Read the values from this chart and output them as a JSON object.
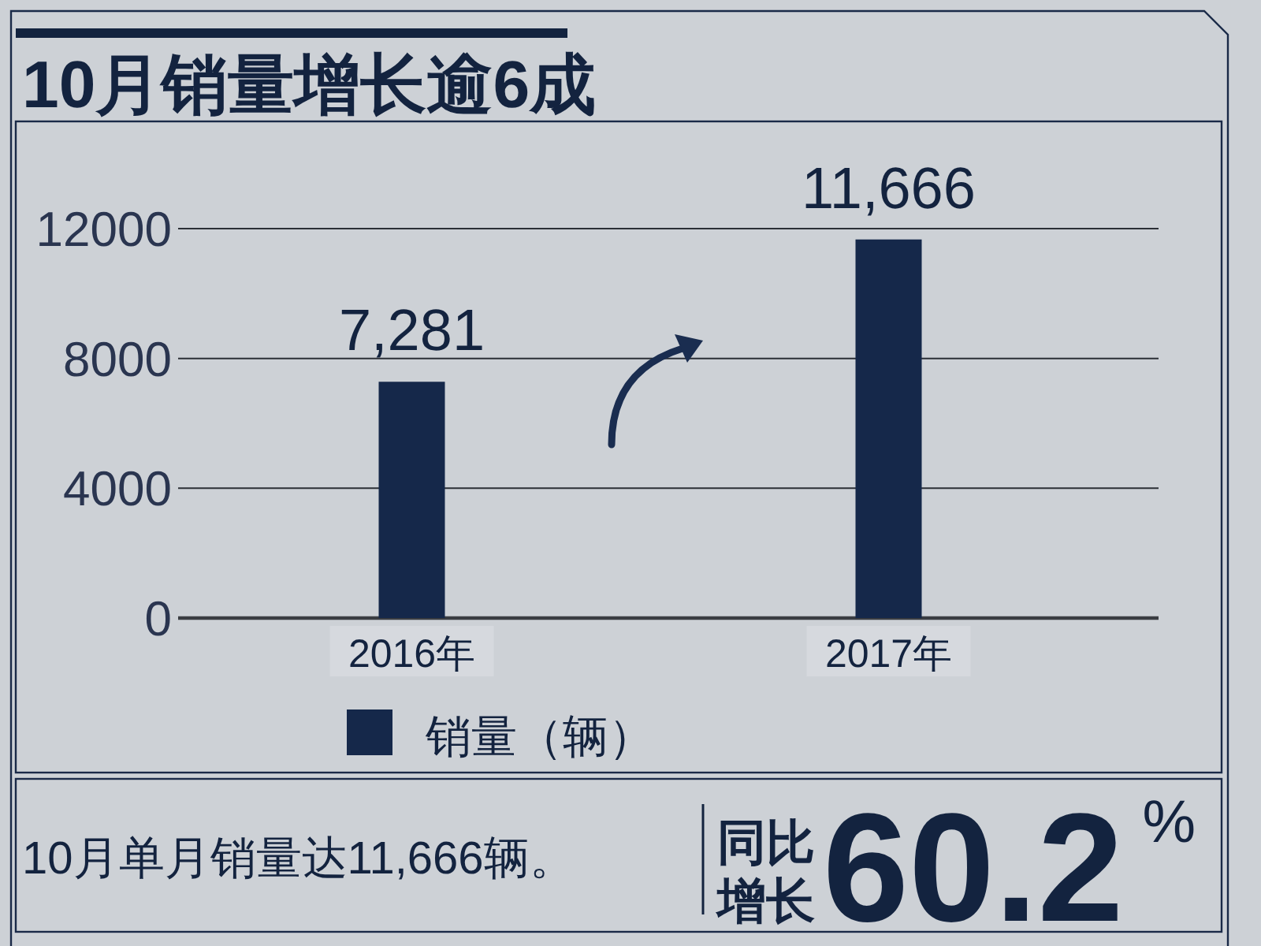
{
  "chart_data": {
    "type": "bar",
    "title": "10月销量增长逾6成",
    "categories": [
      "2016年",
      "2017年"
    ],
    "series": [
      {
        "name": "销量（辆）",
        "color": "#15284a",
        "values": [
          7281,
          11666
        ],
        "value_labels": [
          "7,281",
          "11,666"
        ]
      }
    ],
    "ylim": [
      0,
      12000
    ],
    "yticks": [
      0,
      4000,
      8000,
      12000
    ],
    "grid": "y",
    "legend": "bottom",
    "annotations": [
      "10月单月销量达11,666辆。",
      "同比增长",
      "60.2$^{%}$"
    ]
  }
}
